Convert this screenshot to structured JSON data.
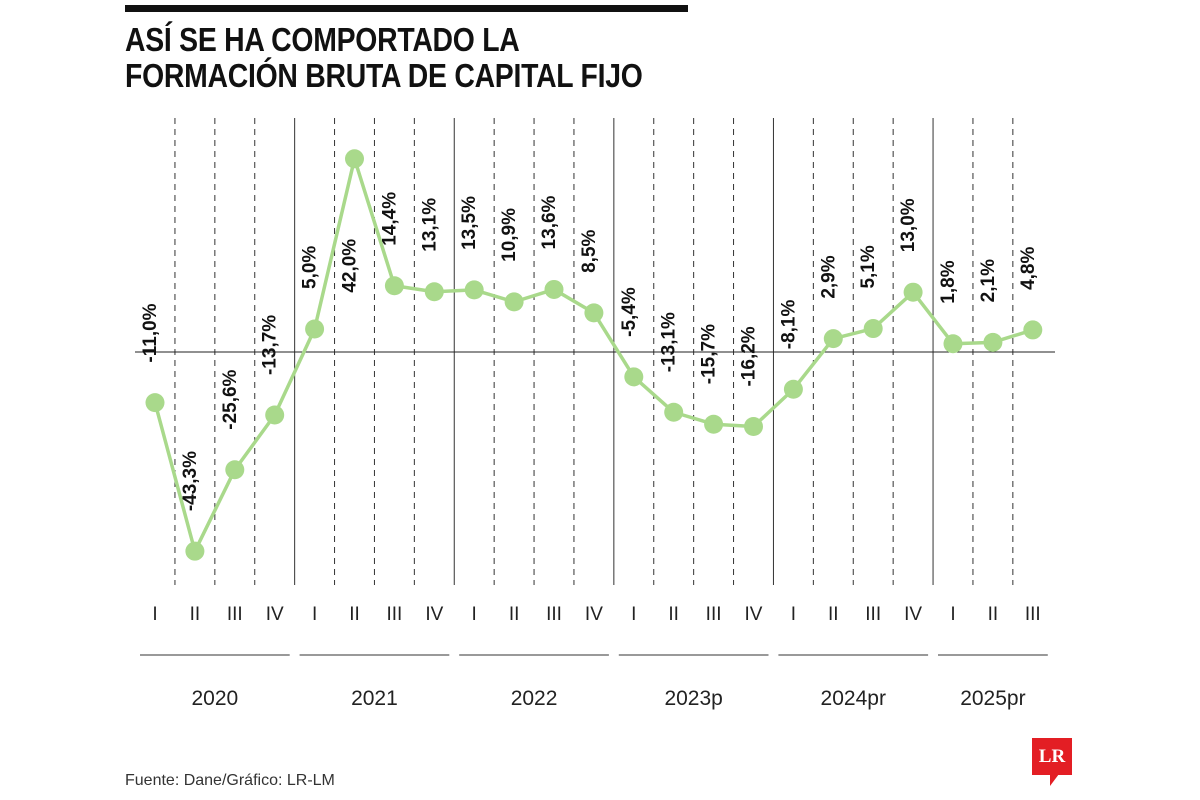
{
  "title_line1": "ASÍ SE HA COMPORTADO LA",
  "title_line2": "FORMACIÓN BRUTA DE CAPITAL FIJO",
  "source": "Fuente: Dane/Gráfico: LR-LM",
  "logo_text": "LR",
  "colors": {
    "line": "#a9d98b",
    "point": "#a9d98b",
    "logo": "#e31e24"
  },
  "chart_data": {
    "type": "line",
    "title": "ASÍ SE HA COMPORTADO LA FORMACIÓN BRUTA DE CAPITAL FIJO",
    "xlabel": "",
    "ylabel": "",
    "years": [
      {
        "label": "2020",
        "quarters": [
          "I",
          "II",
          "III",
          "IV"
        ]
      },
      {
        "label": "2021",
        "quarters": [
          "I",
          "II",
          "III",
          "IV"
        ]
      },
      {
        "label": "2022",
        "quarters": [
          "I",
          "II",
          "III",
          "IV"
        ]
      },
      {
        "label": "2023p",
        "quarters": [
          "I",
          "II",
          "III",
          "IV"
        ]
      },
      {
        "label": "2024pr",
        "quarters": [
          "I",
          "II",
          "III",
          "IV"
        ]
      },
      {
        "label": "2025pr",
        "quarters": [
          "I",
          "II",
          "III"
        ]
      }
    ],
    "values": [
      -11.0,
      -43.3,
      -25.6,
      -13.7,
      5.0,
      42.0,
      14.4,
      13.1,
      13.5,
      10.9,
      13.6,
      8.5,
      -5.4,
      -13.1,
      -15.7,
      -16.2,
      -8.1,
      2.9,
      5.1,
      13.0,
      1.8,
      2.1,
      4.8
    ],
    "labels": [
      "-11,0%",
      "-43,3%",
      "-25,6%",
      "-13,7%",
      "5,0%",
      "42,0%",
      "14,4%",
      "13,1%",
      "13,5%",
      "10,9%",
      "13,6%",
      "8,5%",
      "-5,4%",
      "-13,1%",
      "-15,7%",
      "-16,2%",
      "-8,1%",
      "2,9%",
      "5,1%",
      "13,0%",
      "1,8%",
      "2,1%",
      "4,8%"
    ],
    "grid": true
  }
}
